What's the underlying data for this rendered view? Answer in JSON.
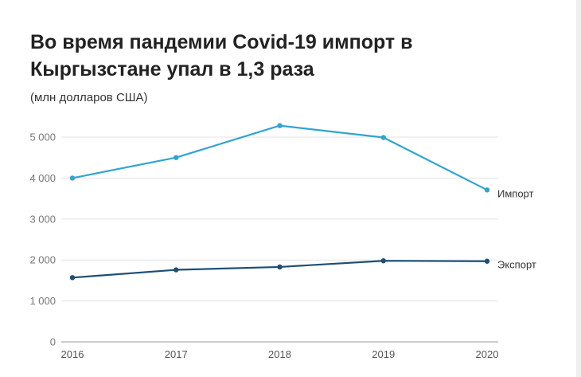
{
  "chart_data": {
    "type": "line",
    "title": "Во время пандемии Covid-19 импорт в Кыргызстане упал в 1,3 раза",
    "subtitle": "(млн долларов США)",
    "xlabel": "",
    "ylabel": "",
    "x": [
      "2016",
      "2017",
      "2018",
      "2019",
      "2020"
    ],
    "ylim": [
      0,
      5500
    ],
    "yticks": [
      {
        "value": 0,
        "label": "0"
      },
      {
        "value": 1000,
        "label": "1 000"
      },
      {
        "value": 2000,
        "label": "2 000"
      },
      {
        "value": 3000,
        "label": "3 000"
      },
      {
        "value": 4000,
        "label": "4 000"
      },
      {
        "value": 5000,
        "label": "5 000"
      }
    ],
    "grid": true,
    "legend": "inline labels at right end of lines",
    "series": [
      {
        "name": "Импорт",
        "color": "#2fa5d0",
        "values": [
          4000,
          4500,
          5280,
          4990,
          3710
        ]
      },
      {
        "name": "Экспорт",
        "color": "#1d4f76",
        "values": [
          1570,
          1760,
          1830,
          1980,
          1970
        ]
      }
    ]
  }
}
